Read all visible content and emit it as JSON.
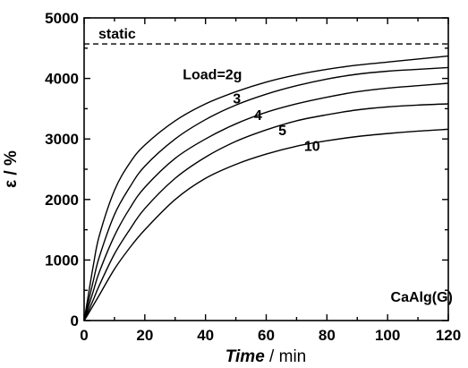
{
  "chart_data": {
    "type": "line",
    "title": "",
    "xlabel_italic": "Time",
    "xlabel_unit": " / min",
    "ylabel": "ε / %",
    "xlim": [
      0,
      120
    ],
    "ylim": [
      0,
      5000
    ],
    "xticks": [
      0,
      20,
      40,
      60,
      80,
      100,
      120
    ],
    "yticks": [
      0,
      1000,
      2000,
      3000,
      4000,
      5000
    ],
    "x": [
      0,
      1,
      3,
      5,
      10,
      15,
      20,
      30,
      40,
      50,
      60,
      70,
      80,
      90,
      100,
      110,
      120
    ],
    "series": [
      {
        "name": "Load=2g",
        "values": [
          0,
          300,
          900,
          1400,
          2150,
          2600,
          2900,
          3300,
          3580,
          3780,
          3940,
          4060,
          4150,
          4220,
          4270,
          4320,
          4370
        ]
      },
      {
        "name": "3",
        "values": [
          0,
          220,
          650,
          1050,
          1750,
          2200,
          2550,
          3000,
          3320,
          3560,
          3740,
          3880,
          3990,
          4070,
          4120,
          4150,
          4180
        ]
      },
      {
        "name": "4",
        "values": [
          0,
          160,
          480,
          800,
          1400,
          1850,
          2200,
          2680,
          3000,
          3250,
          3440,
          3580,
          3690,
          3780,
          3840,
          3880,
          3920
        ]
      },
      {
        "name": "5",
        "values": [
          0,
          110,
          340,
          580,
          1100,
          1500,
          1850,
          2350,
          2700,
          2960,
          3150,
          3300,
          3400,
          3480,
          3530,
          3560,
          3580
        ]
      },
      {
        "name": "10",
        "values": [
          0,
          80,
          250,
          420,
          850,
          1200,
          1500,
          2000,
          2350,
          2580,
          2750,
          2880,
          2970,
          3040,
          3090,
          3130,
          3160
        ]
      }
    ],
    "reference_line": {
      "label": "static",
      "y": 4570,
      "style": "dashed"
    },
    "annotations": [
      {
        "text": "Load=2g",
        "x": 32.5,
        "y": 3990
      },
      {
        "text": "3",
        "x": 49,
        "y": 3590
      },
      {
        "text": "4",
        "x": 56,
        "y": 3310
      },
      {
        "text": "5",
        "x": 64,
        "y": 3060
      },
      {
        "text": "10",
        "x": 72.5,
        "y": 2800
      },
      {
        "text": "CaAlg(G)",
        "x": 101,
        "y": 310
      }
    ],
    "grid": false,
    "legend": "none"
  }
}
